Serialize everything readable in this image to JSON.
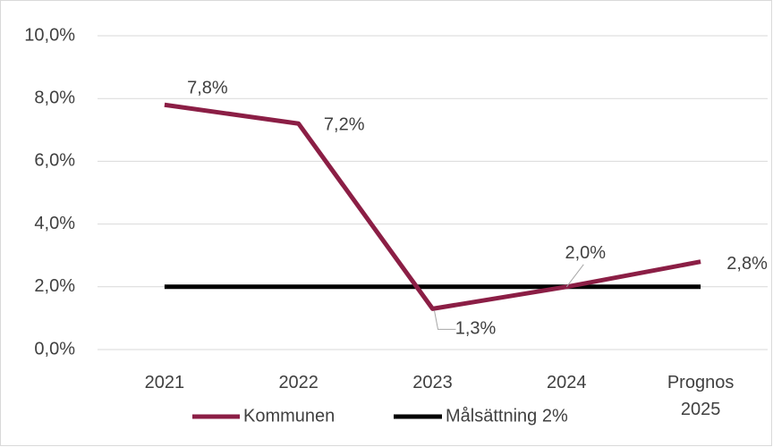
{
  "chart_data": {
    "type": "line",
    "categories": [
      "2021",
      "2022",
      "2023",
      "2024",
      "Prognos 2025"
    ],
    "series": [
      {
        "name": "Kommunen",
        "color": "#8b1e45",
        "values": [
          7.8,
          7.2,
          1.3,
          2.0,
          2.8
        ],
        "value_labels": [
          "7,8%",
          "7,2%",
          "1,3%",
          "2,0%",
          "2,8%"
        ]
      },
      {
        "name": "Målsättning 2%",
        "color": "#000000",
        "values": [
          2,
          2,
          2,
          2,
          2
        ]
      }
    ],
    "ylim": [
      0,
      10
    ],
    "yticks": [
      {
        "value": 0,
        "label": "0,0%"
      },
      {
        "value": 2,
        "label": "2,0%"
      },
      {
        "value": 4,
        "label": "4,0%"
      },
      {
        "value": 6,
        "label": "6,0%"
      },
      {
        "value": 8,
        "label": "8,0%"
      },
      {
        "value": 10,
        "label": "10,0%"
      }
    ],
    "grid": true,
    "legend": "bottom"
  }
}
